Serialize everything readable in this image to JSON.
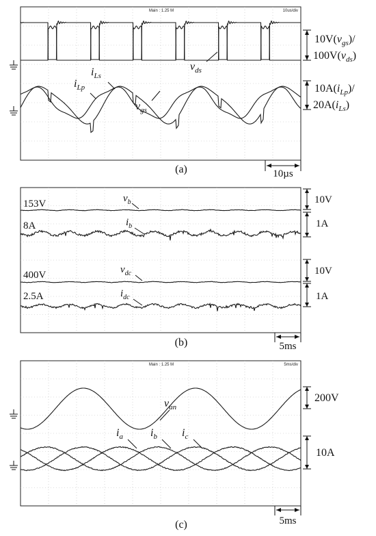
{
  "chart_data": [
    {
      "type": "line",
      "caption": "(a)",
      "header_center": "Main : 1.25 M",
      "header_right": "10us/div",
      "time_scale": "10µs",
      "channels": [
        {
          "kind": "pulse",
          "label": "v_gs",
          "name_base": "v",
          "name_sub": "gs",
          "scale_text": "10V(v_gs)/",
          "scale_base": "10V(",
          "scale_var": "v",
          "scale_sub": "gs",
          "scale_end": ")/",
          "high": 1,
          "low": 0,
          "period_us": 15.2,
          "duty": 0.2,
          "ringing": true
        },
        {
          "kind": "pulse",
          "label": "v_ds",
          "name_base": "v",
          "name_sub": "ds",
          "scale_text": "100V(v_ds)",
          "scale_base": "100V(",
          "scale_var": "v",
          "scale_sub": "ds",
          "scale_end": ")",
          "high": 1,
          "low": 0,
          "period_us": 15.2,
          "duty": 0.8
        },
        {
          "kind": "ac",
          "label": "i_Lp",
          "name_base": "i",
          "name_sub": "Lp",
          "scale_text": "10A(i_Lp)/",
          "scale_base": "10A(",
          "scale_var": "i",
          "scale_sub": "Lp",
          "scale_end": ")/",
          "amplitude_div": 0.9,
          "period_us": 29
        },
        {
          "kind": "ac",
          "label": "i_Ls",
          "name_base": "i",
          "name_sub": "Ls",
          "scale_text": "20A(i_Ls)",
          "scale_base": "20A(",
          "scale_var": "i",
          "scale_sub": "Ls",
          "scale_end": ")",
          "amplitude_div": 1.1,
          "period_us": 29
        }
      ]
    },
    {
      "type": "line",
      "caption": "(b)",
      "time_scale": "5ms",
      "channels": [
        {
          "label": "v_b",
          "name_base": "v",
          "name_sub": "b",
          "level_text": "153V",
          "scale_text": "10V",
          "ripple": "small"
        },
        {
          "label": "i_b",
          "name_base": "i",
          "name_sub": "b",
          "level_text": "8A",
          "scale_text": "1A",
          "ripple": "medium"
        },
        {
          "label": "v_dc",
          "name_base": "v",
          "name_sub": "dc",
          "level_text": "400V",
          "scale_text": "10V",
          "ripple": "small"
        },
        {
          "label": "i_dc",
          "name_base": "i",
          "name_sub": "dc",
          "level_text": "2.5A",
          "scale_text": "1A",
          "ripple": "medium"
        }
      ]
    },
    {
      "type": "line",
      "caption": "(c)",
      "header_center": "Main : 1.25 M",
      "header_right": "5ms/div",
      "time_scale": "5ms",
      "channels": [
        {
          "label": "v_an",
          "name_base": "v",
          "name_sub": "an",
          "scale_text": "200V",
          "frequency_hz": 50,
          "phase_deg": 0
        },
        {
          "label": "i_a",
          "name_base": "i",
          "name_sub": "a",
          "scale_text": "10A",
          "frequency_hz": 50,
          "phase_deg": 0
        },
        {
          "label": "i_b",
          "name_base": "i",
          "name_sub": "b",
          "scale_text": "10A",
          "frequency_hz": 50,
          "phase_deg": -120
        },
        {
          "label": "i_c",
          "name_base": "i",
          "name_sub": "c",
          "scale_text": "10A",
          "frequency_hz": 50,
          "phase_deg": 120
        }
      ]
    }
  ]
}
